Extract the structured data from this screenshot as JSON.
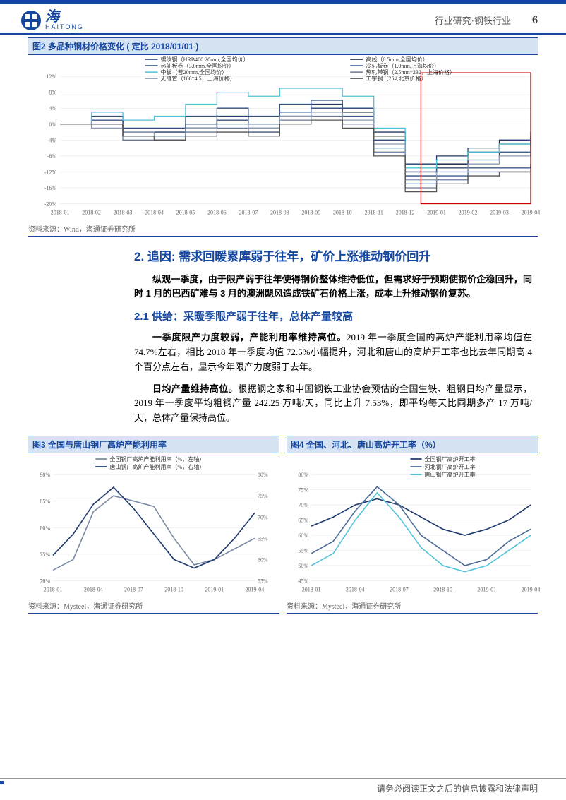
{
  "header": {
    "brand_cn": "海",
    "brand_en": "HAITONG",
    "category": "行业研究·钢铁行业",
    "page": "6"
  },
  "fig2": {
    "title": "图2  多品种钢材价格变化 ( 定比 2018/01/01 )",
    "source": "资料来源：Wind，海通证券研究所",
    "type": "line",
    "x_labels": [
      "2018-01",
      "2018-02",
      "2018-03",
      "2018-04",
      "2018-05",
      "2018-06",
      "2018-07",
      "2018-08",
      "2018-09",
      "2018-10",
      "2018-11",
      "2018-12",
      "2019-01",
      "2019-02",
      "2019-03",
      "2019-04"
    ],
    "y_labels": [
      "-20%",
      "-16%",
      "-12%",
      "-8%",
      "-4%",
      "0%",
      "4%",
      "8%",
      "12%"
    ],
    "ylim": [
      -20,
      12
    ],
    "legend": [
      {
        "label": "螺纹钢（HRB400 20mm,全国均价）",
        "color": "#1f3a6e"
      },
      {
        "label": "高线（6.5mm,全国均价）",
        "color": "#0a1a3a"
      },
      {
        "label": "热轧板卷（3.0mm,全国均价）",
        "color": "#2e4f7f"
      },
      {
        "label": "冷轧板卷（1.0mm,上海均价）",
        "color": "#3a5c8f"
      },
      {
        "label": "中板（普20mm,全国均价）",
        "color": "#4fc3d9"
      },
      {
        "label": "热轧带钢（2.5mm*232，上海价格）",
        "color": "#6a7a9a"
      },
      {
        "label": "无缝管（108*4.5，上海价格）",
        "color": "#8a9ab5"
      },
      {
        "label": "工字钢（25#,北京价格）",
        "color": "#555"
      }
    ],
    "highlight_box": {
      "color": "#cc0000",
      "x_start": 11.5,
      "x_end": 15
    },
    "series": [
      {
        "color": "#1f3a6e",
        "values": [
          0,
          1,
          -2,
          -2,
          0,
          2,
          -1,
          3,
          5,
          4,
          -2,
          -10,
          -8,
          -6,
          -4,
          -2
        ]
      },
      {
        "color": "#0a1a3a",
        "values": [
          0,
          0,
          -3,
          -3,
          -1,
          1,
          -2,
          2,
          4,
          3,
          -3,
          -12,
          -10,
          -7,
          -5,
          -3
        ]
      },
      {
        "color": "#2e4f7f",
        "values": [
          0,
          2,
          -1,
          -1,
          2,
          4,
          2,
          5,
          6,
          4,
          -4,
          -13,
          -11,
          -9,
          -7,
          -5
        ]
      },
      {
        "color": "#3a5c8f",
        "values": [
          0,
          1,
          -3,
          -4,
          -1,
          1,
          0,
          3,
          4,
          2,
          -6,
          -15,
          -13,
          -11,
          -11,
          -10
        ]
      },
      {
        "color": "#4fc3d9",
        "values": [
          0,
          3,
          1,
          2,
          5,
          8,
          7,
          9,
          9,
          7,
          -1,
          -11,
          -9,
          -7,
          -5,
          -3
        ]
      },
      {
        "color": "#6a7a9a",
        "values": [
          0,
          0,
          -4,
          -4,
          -2,
          -1,
          -2,
          1,
          2,
          0,
          -7,
          -16,
          -14,
          -12,
          -12,
          -12
        ]
      },
      {
        "color": "#8a9ab5",
        "values": [
          0,
          -1,
          -2,
          -3,
          -1,
          0,
          -1,
          2,
          3,
          1,
          -5,
          -14,
          -12,
          -10,
          -8,
          -6
        ]
      },
      {
        "color": "#555",
        "values": [
          0,
          0,
          -3,
          -4,
          -3,
          -2,
          -3,
          0,
          1,
          -1,
          -8,
          -17,
          -15,
          -13,
          -12,
          -12
        ]
      }
    ],
    "grid_color": "#e0e0e0",
    "label_fontsize": 8,
    "font_color": "#666"
  },
  "text": {
    "h1": "2.  追因: 需求回暖累库弱于往年，矿价上涨推动钢价回升",
    "p1_lead": "纵观一季度，由于限产弱于往年使得钢价整体维持低位，但需求好于预期使钢价企稳回升，同时 1 月的巴西矿难与 3 月的澳洲飓风造成铁矿石价格上涨，成本上升推动钢价复苏。",
    "h2": "2.1 供给：采暖季限产弱于往年，总体产量较高",
    "p2a": "一季度限产力度较弱，产能利用率维持高位。",
    "p2b": "2019 年一季度全国的高炉产能利用率均值在 74.7%左右，相比 2018 年一季度均值 72.5%小幅提升，河北和唐山的高炉开工率也比去年同期高 4 个百分点左右，显示今年限产力度弱于去年。",
    "p3a": "日均产量维持高位。",
    "p3b": "根据钢之家和中国钢铁工业协会预估的全国生铁、粗钢日均产量显示，2019 年一季度平均粗钢产量 242.25 万吨/天，同比上升 7.53%，即平均每天比同期多产 17 万吨/天，总体产量保持高位。"
  },
  "fig3": {
    "title": "图3  全国与唐山钢厂高炉产能利用率",
    "source": "资料来源：Mysteel，海通证券研究所",
    "type": "line",
    "x_labels": [
      "2018-01",
      "2018-04",
      "2018-07",
      "2018-10",
      "2019-01",
      "2019-04"
    ],
    "y_left": {
      "labels": [
        "70%",
        "75%",
        "80%",
        "85%",
        "90%"
      ],
      "lim": [
        70,
        90
      ]
    },
    "y_right": {
      "labels": [
        "55%",
        "60%",
        "65%",
        "70%",
        "75%",
        "80%"
      ],
      "lim": [
        55,
        80
      ]
    },
    "legend": [
      {
        "label": "全国钢厂高炉产能利用率（%，左轴）",
        "color": "#7a8aa5"
      },
      {
        "label": "唐山钢厂高炉产能利用率（%，右轴）",
        "color": "#1f3a6e"
      }
    ],
    "series": [
      {
        "axis": "left",
        "color": "#7a8aa5",
        "values": [
          72,
          74,
          83,
          86,
          85,
          84,
          78,
          73,
          74,
          76,
          78
        ]
      },
      {
        "axis": "right",
        "color": "#1f3a6e",
        "values": [
          61,
          66,
          73,
          77,
          72,
          66,
          60,
          58,
          60,
          65,
          71
        ]
      }
    ],
    "grid_color": "#e0e0e0",
    "label_fontsize": 8
  },
  "fig4": {
    "title": "图4  全国、河北、唐山高炉开工率（%）",
    "source": "资料来源：Mysteel，海通证券研究所",
    "type": "line",
    "x_labels": [
      "2018-01",
      "2018-04",
      "2018-07",
      "2018-10",
      "2019-01",
      "2019-04"
    ],
    "y_labels": [
      "45%",
      "50%",
      "55%",
      "60%",
      "65%",
      "70%",
      "75%",
      "80%"
    ],
    "ylim": [
      45,
      80
    ],
    "legend": [
      {
        "label": "全国钢厂高炉开工率",
        "color": "#1f3a6e"
      },
      {
        "label": "河北钢厂高炉开工率",
        "color": "#4a6a9a"
      },
      {
        "label": "唐山钢厂高炉开工率",
        "color": "#4fc3d9"
      }
    ],
    "series": [
      {
        "color": "#1f3a6e",
        "values": [
          63,
          66,
          70,
          72,
          70,
          66,
          62,
          60,
          62,
          65,
          70
        ]
      },
      {
        "color": "#4a6a9a",
        "values": [
          54,
          58,
          68,
          76,
          70,
          60,
          55,
          50,
          52,
          58,
          62
        ]
      },
      {
        "color": "#4fc3d9",
        "values": [
          50,
          54,
          65,
          74,
          66,
          56,
          50,
          48,
          50,
          55,
          60
        ]
      }
    ],
    "grid_color": "#e0e0e0",
    "label_fontsize": 8
  },
  "footer": "请务必阅读正文之后的信息披露和法律声明"
}
